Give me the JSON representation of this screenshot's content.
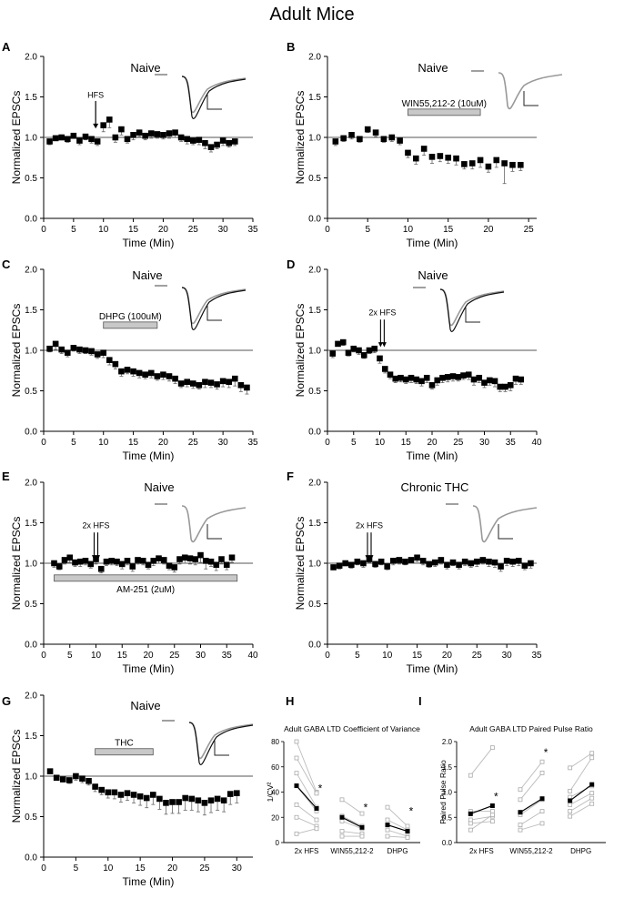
{
  "figure_title": "Adult Mice",
  "chart_data": [
    {
      "panel": "A",
      "type": "scatter",
      "title": "Naive",
      "xlabel": "Time (Min)",
      "ylabel": "Normalized EPSCs",
      "xlim": [
        0,
        35
      ],
      "ylim": [
        0,
        2.0
      ],
      "xticks": [
        0,
        5,
        10,
        15,
        20,
        25,
        30,
        35
      ],
      "yticks": [
        0.0,
        0.5,
        1.0,
        1.5,
        2.0
      ],
      "baseline": 1.0,
      "annotations": [
        {
          "type": "arrow",
          "label": "HFS",
          "x": 8.7
        }
      ],
      "x": [
        1,
        2,
        3,
        4,
        5,
        6,
        7,
        8,
        9,
        10,
        11,
        12,
        13,
        14,
        15,
        16,
        17,
        18,
        19,
        20,
        21,
        22,
        23,
        24,
        25,
        26,
        27,
        28,
        29,
        30,
        31,
        32
      ],
      "y": [
        0.95,
        0.99,
        1.0,
        0.98,
        1.02,
        0.96,
        1.01,
        0.98,
        0.95,
        1.15,
        1.22,
        1.0,
        1.1,
        0.98,
        1.03,
        1.06,
        1.02,
        1.05,
        1.04,
        1.03,
        1.05,
        1.06,
        1.0,
        0.98,
        0.96,
        0.97,
        0.93,
        0.88,
        0.91,
        0.96,
        0.93,
        0.95
      ],
      "err": [
        0.04,
        0.03,
        0.03,
        0.04,
        0.03,
        0.05,
        0.04,
        0.05,
        0.05,
        0.08,
        0.1,
        0.06,
        0.07,
        0.05,
        0.06,
        0.05,
        0.05,
        0.06,
        0.05,
        0.05,
        0.06,
        0.06,
        0.05,
        0.06,
        0.05,
        0.06,
        0.07,
        0.06,
        0.05,
        0.06,
        0.05,
        0.05
      ]
    },
    {
      "panel": "B",
      "type": "scatter",
      "title": "Naive",
      "xlabel": "Time (Min)",
      "ylabel": "Normalized EPSCs",
      "xlim": [
        0,
        26
      ],
      "ylim": [
        0,
        2.0
      ],
      "xticks": [
        0,
        5,
        10,
        15,
        20,
        25
      ],
      "yticks": [
        0.0,
        0.5,
        1.0,
        1.5,
        2.0
      ],
      "baseline": 1.0,
      "annotations": [
        {
          "type": "bar",
          "label": "WIN55,212-2 (10uM)",
          "x0": 10,
          "x1": 19
        }
      ],
      "x": [
        1,
        2,
        3,
        4,
        5,
        6,
        7,
        8,
        9,
        10,
        11,
        12,
        13,
        14,
        15,
        16,
        17,
        18,
        19,
        20,
        21,
        22,
        23,
        24
      ],
      "y": [
        0.95,
        0.99,
        1.03,
        0.98,
        1.1,
        1.06,
        0.98,
        1.0,
        0.96,
        0.81,
        0.74,
        0.86,
        0.76,
        0.77,
        0.75,
        0.74,
        0.67,
        0.68,
        0.72,
        0.64,
        0.72,
        0.68,
        0.66,
        0.66
      ],
      "err": [
        0.05,
        0.04,
        0.05,
        0.04,
        0.04,
        0.05,
        0.04,
        0.05,
        0.05,
        0.06,
        0.07,
        0.08,
        0.08,
        0.07,
        0.07,
        0.08,
        0.06,
        0.07,
        0.09,
        0.07,
        0.09,
        0.25,
        0.08,
        0.07
      ]
    },
    {
      "panel": "C",
      "type": "scatter",
      "title": "Naive",
      "xlabel": "Time (Min)",
      "ylabel": "Normalized EPSCs",
      "xlim": [
        0,
        35
      ],
      "ylim": [
        0,
        2.0
      ],
      "xticks": [
        0,
        5,
        10,
        15,
        20,
        25,
        30,
        35
      ],
      "yticks": [
        0.0,
        0.5,
        1.0,
        1.5,
        2.0
      ],
      "baseline": 1.0,
      "annotations": [
        {
          "type": "bar",
          "label": "DHPG (100uM)",
          "x0": 10,
          "x1": 19
        }
      ],
      "x": [
        1,
        2,
        3,
        4,
        5,
        6,
        7,
        8,
        9,
        10,
        11,
        12,
        13,
        14,
        15,
        16,
        17,
        18,
        19,
        20,
        21,
        22,
        23,
        24,
        25,
        26,
        27,
        28,
        29,
        30,
        31,
        32,
        33,
        34
      ],
      "y": [
        1.02,
        1.08,
        1.01,
        0.97,
        1.03,
        1.01,
        1.0,
        0.99,
        0.95,
        0.97,
        0.88,
        0.83,
        0.74,
        0.76,
        0.74,
        0.72,
        0.7,
        0.72,
        0.68,
        0.7,
        0.68,
        0.65,
        0.59,
        0.61,
        0.59,
        0.57,
        0.61,
        0.6,
        0.58,
        0.62,
        0.61,
        0.65,
        0.57,
        0.54
      ],
      "err": [
        0.04,
        0.07,
        0.05,
        0.05,
        0.04,
        0.05,
        0.04,
        0.05,
        0.05,
        0.06,
        0.06,
        0.06,
        0.06,
        0.05,
        0.06,
        0.06,
        0.05,
        0.06,
        0.05,
        0.06,
        0.06,
        0.06,
        0.05,
        0.06,
        0.06,
        0.05,
        0.07,
        0.06,
        0.06,
        0.07,
        0.07,
        0.09,
        0.08,
        0.08
      ]
    },
    {
      "panel": "D",
      "type": "scatter",
      "title": "Naive",
      "xlabel": "Time (Min)",
      "ylabel": "Normalized EPSCs",
      "xlim": [
        0,
        40
      ],
      "ylim": [
        0,
        2.0
      ],
      "xticks": [
        0,
        5,
        10,
        15,
        20,
        25,
        30,
        35,
        40
      ],
      "yticks": [
        0.0,
        0.5,
        1.0,
        1.5,
        2.0
      ],
      "baseline": 1.0,
      "annotations": [
        {
          "type": "double-arrow",
          "label": "2x HFS",
          "x": 10.5
        }
      ],
      "x": [
        1,
        2,
        3,
        4,
        5,
        6,
        7,
        8,
        9,
        10,
        11,
        12,
        13,
        14,
        15,
        16,
        17,
        18,
        19,
        20,
        21,
        22,
        23,
        24,
        25,
        26,
        27,
        28,
        29,
        30,
        31,
        32,
        33,
        34,
        35,
        36,
        37
      ],
      "y": [
        0.96,
        1.08,
        1.1,
        0.97,
        1.02,
        1.0,
        0.94,
        1.0,
        1.02,
        0.9,
        0.77,
        0.7,
        0.65,
        0.66,
        0.64,
        0.66,
        0.64,
        0.62,
        0.66,
        0.57,
        0.63,
        0.66,
        0.67,
        0.68,
        0.67,
        0.69,
        0.7,
        0.64,
        0.66,
        0.6,
        0.63,
        0.62,
        0.55,
        0.55,
        0.57,
        0.65,
        0.64
      ],
      "err": [
        0.05,
        0.03,
        0.04,
        0.04,
        0.04,
        0.05,
        0.04,
        0.04,
        0.05,
        0.06,
        0.05,
        0.05,
        0.05,
        0.05,
        0.05,
        0.06,
        0.05,
        0.06,
        0.06,
        0.05,
        0.06,
        0.06,
        0.06,
        0.06,
        0.05,
        0.05,
        0.06,
        0.07,
        0.06,
        0.06,
        0.06,
        0.07,
        0.06,
        0.06,
        0.07,
        0.07,
        0.06
      ]
    },
    {
      "panel": "E",
      "type": "scatter",
      "title": "Naive",
      "xlabel": "Time (Min)",
      "ylabel": "Normalized EPSCs",
      "xlim": [
        0,
        40
      ],
      "ylim": [
        0,
        2.0
      ],
      "xticks": [
        0,
        5,
        10,
        15,
        20,
        25,
        30,
        35,
        40
      ],
      "yticks": [
        0.0,
        0.5,
        1.0,
        1.5,
        2.0
      ],
      "baseline": 1.0,
      "annotations": [
        {
          "type": "double-arrow",
          "label": "2x HFS",
          "x": 10
        },
        {
          "type": "bar",
          "label": "AM-251 (2uM)",
          "x0": 2,
          "x1": 37
        }
      ],
      "x": [
        2,
        3,
        4,
        5,
        6,
        7,
        8,
        9,
        10,
        11,
        12,
        13,
        14,
        15,
        16,
        17,
        18,
        19,
        20,
        21,
        22,
        23,
        24,
        25,
        26,
        27,
        28,
        29,
        30,
        31,
        32,
        33,
        34,
        35,
        36
      ],
      "y": [
        1.0,
        0.96,
        1.04,
        1.07,
        1.01,
        1.02,
        1.03,
        0.99,
        1.05,
        0.93,
        1.02,
        1.03,
        1.02,
        0.99,
        1.03,
        0.96,
        1.04,
        1.03,
        0.98,
        1.03,
        1.06,
        1.04,
        0.97,
        0.95,
        1.05,
        1.07,
        1.06,
        1.05,
        1.1,
        1.03,
        1.02,
        0.98,
        1.05,
        0.98,
        1.07
      ],
      "err": [
        0.05,
        0.04,
        0.05,
        0.06,
        0.05,
        0.06,
        0.05,
        0.05,
        0.06,
        0.05,
        0.05,
        0.05,
        0.05,
        0.06,
        0.05,
        0.06,
        0.05,
        0.05,
        0.05,
        0.06,
        0.06,
        0.05,
        0.05,
        0.06,
        0.06,
        0.07,
        0.07,
        0.07,
        0.09,
        0.1,
        0.06,
        0.07,
        0.06,
        0.06,
        0.06
      ]
    },
    {
      "panel": "F",
      "type": "scatter",
      "title": "Chronic THC",
      "xlabel": "Time (Min)",
      "ylabel": "Normalized EPSCs",
      "xlim": [
        0,
        35
      ],
      "ylim": [
        0,
        2.0
      ],
      "xticks": [
        0,
        5,
        10,
        15,
        20,
        25,
        30,
        35
      ],
      "yticks": [
        0.0,
        0.5,
        1.0,
        1.5,
        2.0
      ],
      "baseline": 1.0,
      "annotations": [
        {
          "type": "double-arrow",
          "label": "2x HFS",
          "x": 7
        }
      ],
      "x": [
        1,
        2,
        3,
        4,
        5,
        6,
        7,
        8,
        9,
        10,
        11,
        12,
        13,
        14,
        15,
        16,
        17,
        18,
        19,
        20,
        21,
        22,
        23,
        24,
        25,
        26,
        27,
        28,
        29,
        30,
        31,
        32,
        33,
        34
      ],
      "y": [
        0.95,
        0.97,
        1.0,
        0.98,
        1.02,
        1.0,
        1.05,
        0.99,
        1.02,
        0.96,
        1.03,
        1.04,
        1.02,
        1.04,
        1.07,
        1.03,
        0.99,
        1.01,
        1.04,
        0.98,
        1.01,
        0.98,
        1.02,
        1.0,
        1.02,
        1.04,
        1.02,
        1.01,
        0.96,
        1.03,
        1.02,
        1.03,
        0.97,
        1.0
      ],
      "err": [
        0.03,
        0.04,
        0.03,
        0.04,
        0.04,
        0.05,
        0.04,
        0.04,
        0.04,
        0.04,
        0.05,
        0.05,
        0.04,
        0.04,
        0.05,
        0.05,
        0.04,
        0.05,
        0.05,
        0.05,
        0.04,
        0.05,
        0.05,
        0.05,
        0.06,
        0.05,
        0.06,
        0.06,
        0.06,
        0.06,
        0.06,
        0.06,
        0.05,
        0.06
      ]
    },
    {
      "panel": "G",
      "type": "scatter",
      "title": "Naive",
      "xlabel": "Time (Min)",
      "ylabel": "Normalized EPSCs",
      "xlim": [
        0,
        32.5
      ],
      "ylim": [
        0,
        2.0
      ],
      "xticks": [
        0,
        5,
        10,
        15,
        20,
        25,
        30
      ],
      "yticks": [
        0.0,
        0.5,
        1.0,
        1.5,
        2.0
      ],
      "baseline": 1.0,
      "annotations": [
        {
          "type": "bar",
          "label": "THC",
          "x0": 8,
          "x1": 17
        }
      ],
      "x": [
        1,
        2,
        3,
        4,
        5,
        6,
        7,
        8,
        9,
        10,
        11,
        12,
        13,
        14,
        15,
        16,
        17,
        18,
        19,
        20,
        21,
        22,
        23,
        24,
        25,
        26,
        27,
        28,
        29,
        30
      ],
      "y": [
        1.06,
        0.98,
        0.96,
        0.95,
        1.0,
        0.97,
        0.94,
        0.87,
        0.83,
        0.8,
        0.8,
        0.77,
        0.79,
        0.77,
        0.75,
        0.73,
        0.77,
        0.72,
        0.67,
        0.68,
        0.68,
        0.73,
        0.72,
        0.7,
        0.67,
        0.7,
        0.72,
        0.7,
        0.78,
        0.79
      ],
      "err": [
        0.03,
        0.03,
        0.03,
        0.04,
        0.05,
        0.05,
        0.05,
        0.06,
        0.06,
        0.07,
        0.08,
        0.09,
        0.09,
        0.1,
        0.11,
        0.12,
        0.12,
        0.13,
        0.14,
        0.14,
        0.14,
        0.15,
        0.14,
        0.14,
        0.15,
        0.15,
        0.14,
        0.14,
        0.13,
        0.12
      ]
    },
    {
      "panel": "H",
      "type": "paired-line",
      "title": "Adult GABA LTD Coefficient of Variance",
      "ylabel": "1/CV²",
      "ylim": [
        0,
        80
      ],
      "yticks": [
        0,
        20,
        40,
        60,
        80
      ],
      "categories": [
        "2x HFS",
        "WIN55,212-2",
        "DHPG"
      ],
      "groups": [
        {
          "label": "2x HFS",
          "significant": true,
          "mean": [
            45,
            27
          ],
          "pairs": [
            [
              80,
              40
            ],
            [
              67,
              39
            ],
            [
              55,
              28
            ],
            [
              45,
              25
            ],
            [
              30,
              18
            ],
            [
              20,
              13
            ],
            [
              7,
              11
            ]
          ]
        },
        {
          "label": "WIN55,212-2",
          "significant": true,
          "mean": [
            20,
            12
          ],
          "pairs": [
            [
              34,
              23
            ],
            [
              21,
              13
            ],
            [
              17,
              11
            ],
            [
              9,
              7
            ],
            [
              5,
              5
            ]
          ]
        },
        {
          "label": "DHPG",
          "significant": true,
          "mean": [
            14,
            9
          ],
          "pairs": [
            [
              28,
              13
            ],
            [
              18,
              10
            ],
            [
              10,
              5
            ],
            [
              5,
              4
            ]
          ]
        }
      ]
    },
    {
      "panel": "I",
      "type": "paired-line",
      "title": "Adult GABA LTD Paired Pulse Ratio",
      "ylabel": "Paired Pulse Ratio",
      "ylim": [
        0,
        2.0
      ],
      "yticks": [
        0.0,
        0.5,
        1.0,
        1.5,
        2.0
      ],
      "categories": [
        "2x HFS",
        "WIN55,212-2",
        "DHPG"
      ],
      "groups": [
        {
          "label": "2x HFS",
          "significant": true,
          "mean": [
            0.57,
            0.73
          ],
          "pairs": [
            [
              1.33,
              1.88
            ],
            [
              0.62,
              0.62
            ],
            [
              0.45,
              0.52
            ],
            [
              0.38,
              0.42
            ],
            [
              0.25,
              0.55
            ]
          ]
        },
        {
          "label": "WIN55,212-2",
          "significant": true,
          "mean": [
            0.6,
            0.87
          ],
          "pairs": [
            [
              1.05,
              1.6
            ],
            [
              0.85,
              1.38
            ],
            [
              0.55,
              0.85
            ],
            [
              0.35,
              0.62
            ],
            [
              0.25,
              0.38
            ]
          ]
        },
        {
          "label": "DHPG",
          "significant": false,
          "mean": [
            0.83,
            1.15
          ],
          "pairs": [
            [
              1.48,
              1.77
            ],
            [
              1.02,
              1.68
            ],
            [
              0.9,
              1.12
            ],
            [
              0.75,
              0.98
            ],
            [
              0.62,
              0.88
            ],
            [
              0.52,
              0.77
            ]
          ]
        }
      ]
    }
  ]
}
